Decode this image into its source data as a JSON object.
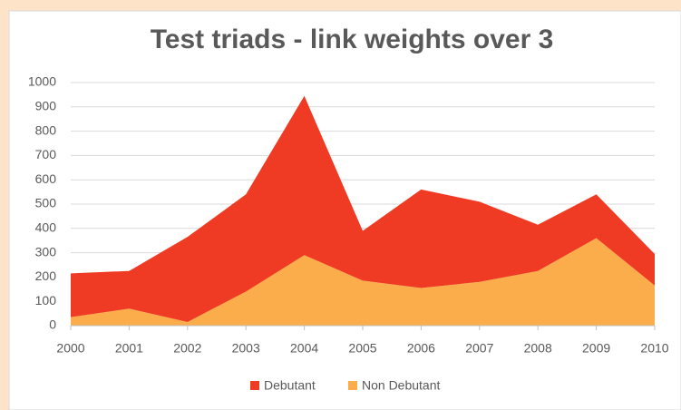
{
  "chart_data": {
    "type": "stacked_area",
    "title": "Test triads - link weights over 3",
    "x": [
      2000,
      2001,
      2002,
      2003,
      2004,
      2005,
      2006,
      2007,
      2008,
      2009,
      2010
    ],
    "series": [
      {
        "name": "Debutant",
        "color": "#ef3b23",
        "values": [
          180,
          155,
          350,
          400,
          655,
          205,
          405,
          330,
          190,
          180,
          130
        ]
      },
      {
        "name": "Non Debutant",
        "color": "#fbad4b",
        "values": [
          35,
          70,
          15,
          140,
          290,
          185,
          155,
          180,
          225,
          360,
          165
        ]
      }
    ],
    "xlim": [
      2000,
      2010
    ],
    "xticks": [
      2000,
      2001,
      2002,
      2003,
      2004,
      2005,
      2006,
      2007,
      2008,
      2009,
      2010
    ],
    "ylim": [
      0,
      1000
    ],
    "yticks": [
      0,
      100,
      200,
      300,
      400,
      500,
      600,
      700,
      800,
      900,
      1000
    ],
    "grid": true,
    "legend": "bottom"
  }
}
